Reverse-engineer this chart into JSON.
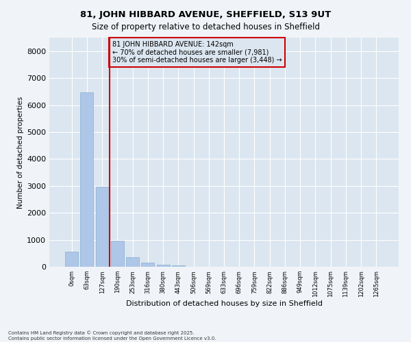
{
  "title": "81, JOHN HIBBARD AVENUE, SHEFFIELD, S13 9UT",
  "subtitle": "Size of property relative to detached houses in Sheffield",
  "xlabel": "Distribution of detached houses by size in Sheffield",
  "ylabel": "Number of detached properties",
  "bar_color": "#aec6e8",
  "bar_edge_color": "#8aafd0",
  "plot_bg_color": "#dce6f0",
  "fig_bg_color": "#f0f4f8",
  "grid_color": "#ffffff",
  "annotation_box_color": "#cc0000",
  "vline_color": "#cc0000",
  "vline_x_index": 2,
  "annotation_line1": "81 JOHN HIBBARD AVENUE: 142sqm",
  "annotation_line2": "← 70% of detached houses are smaller (7,981)",
  "annotation_line3": "30% of semi-detached houses are larger (3,448) →",
  "ylim": [
    0,
    8500
  ],
  "yticks": [
    0,
    1000,
    2000,
    3000,
    4000,
    5000,
    6000,
    7000,
    8000
  ],
  "categories": [
    "0sqm",
    "63sqm",
    "127sqm",
    "190sqm",
    "253sqm",
    "316sqm",
    "380sqm",
    "443sqm",
    "506sqm",
    "569sqm",
    "633sqm",
    "696sqm",
    "759sqm",
    "822sqm",
    "886sqm",
    "949sqm",
    "1012sqm",
    "1075sqm",
    "1139sqm",
    "1202sqm",
    "1265sqm"
  ],
  "values": [
    560,
    6480,
    2980,
    960,
    360,
    155,
    80,
    50,
    0,
    0,
    0,
    0,
    0,
    0,
    0,
    0,
    0,
    0,
    0,
    0,
    0
  ],
  "footer_line1": "Contains HM Land Registry data © Crown copyright and database right 2025.",
  "footer_line2": "Contains public sector information licensed under the Open Government Licence v3.0."
}
